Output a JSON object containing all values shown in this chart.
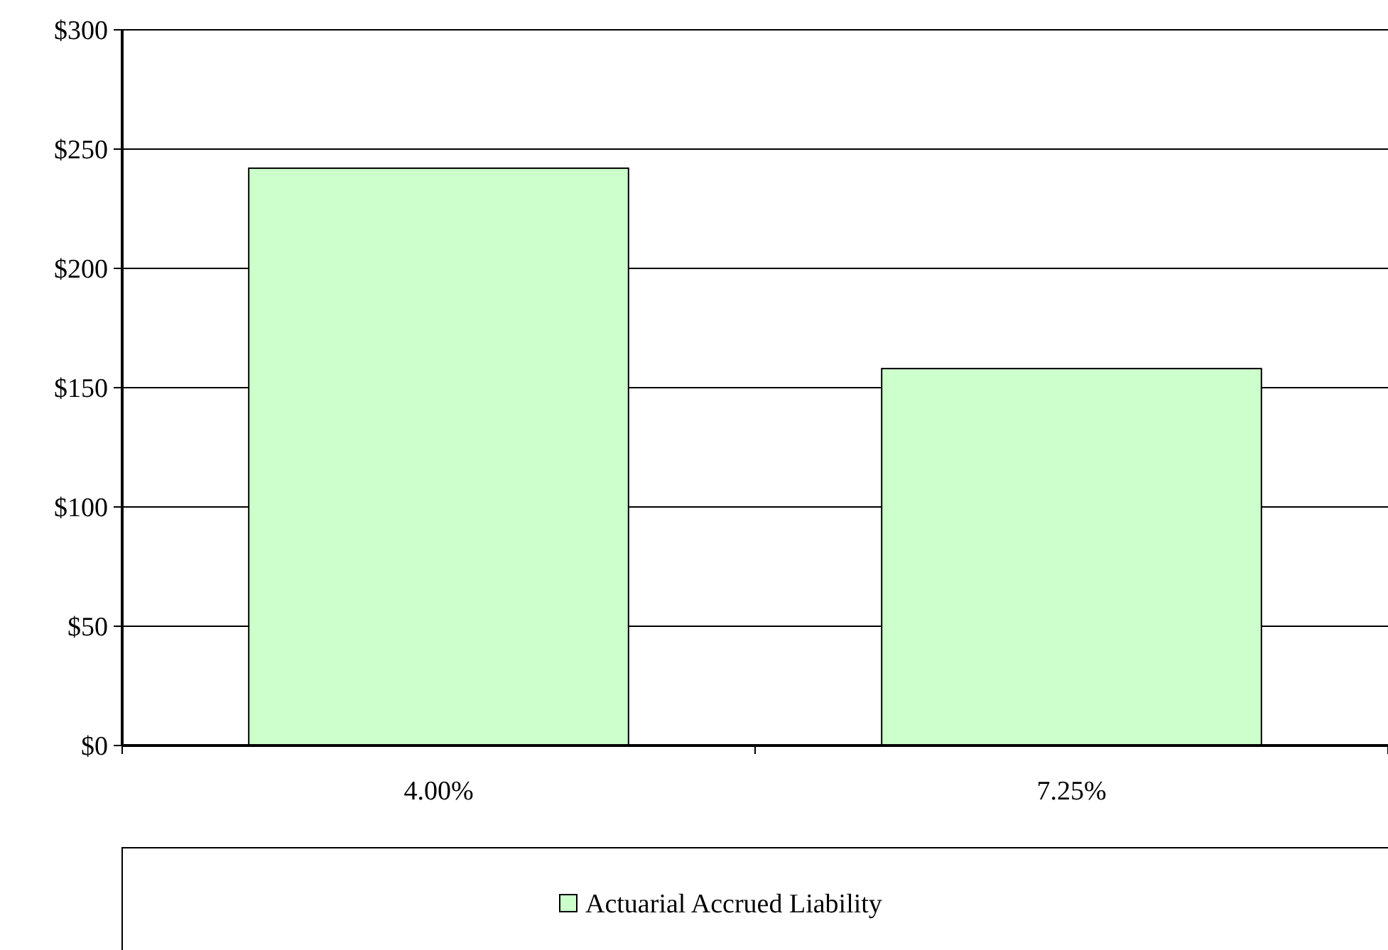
{
  "chart_data": {
    "type": "bar",
    "categories": [
      "4.00%",
      "7.25%"
    ],
    "series": [
      {
        "name": "Actuarial Accrued Liability",
        "color": "#ccffcc",
        "values": [
          242,
          158
        ]
      }
    ],
    "ylim": [
      0,
      300
    ],
    "yticks": [
      {
        "value": 0,
        "label": "$0"
      },
      {
        "value": 50,
        "label": "$50"
      },
      {
        "value": 100,
        "label": "$100"
      },
      {
        "value": 150,
        "label": "$150"
      },
      {
        "value": 200,
        "label": "$200"
      },
      {
        "value": 250,
        "label": "$250"
      },
      {
        "value": 300,
        "label": "$300"
      }
    ],
    "grid": "y",
    "legend": "bottom"
  }
}
